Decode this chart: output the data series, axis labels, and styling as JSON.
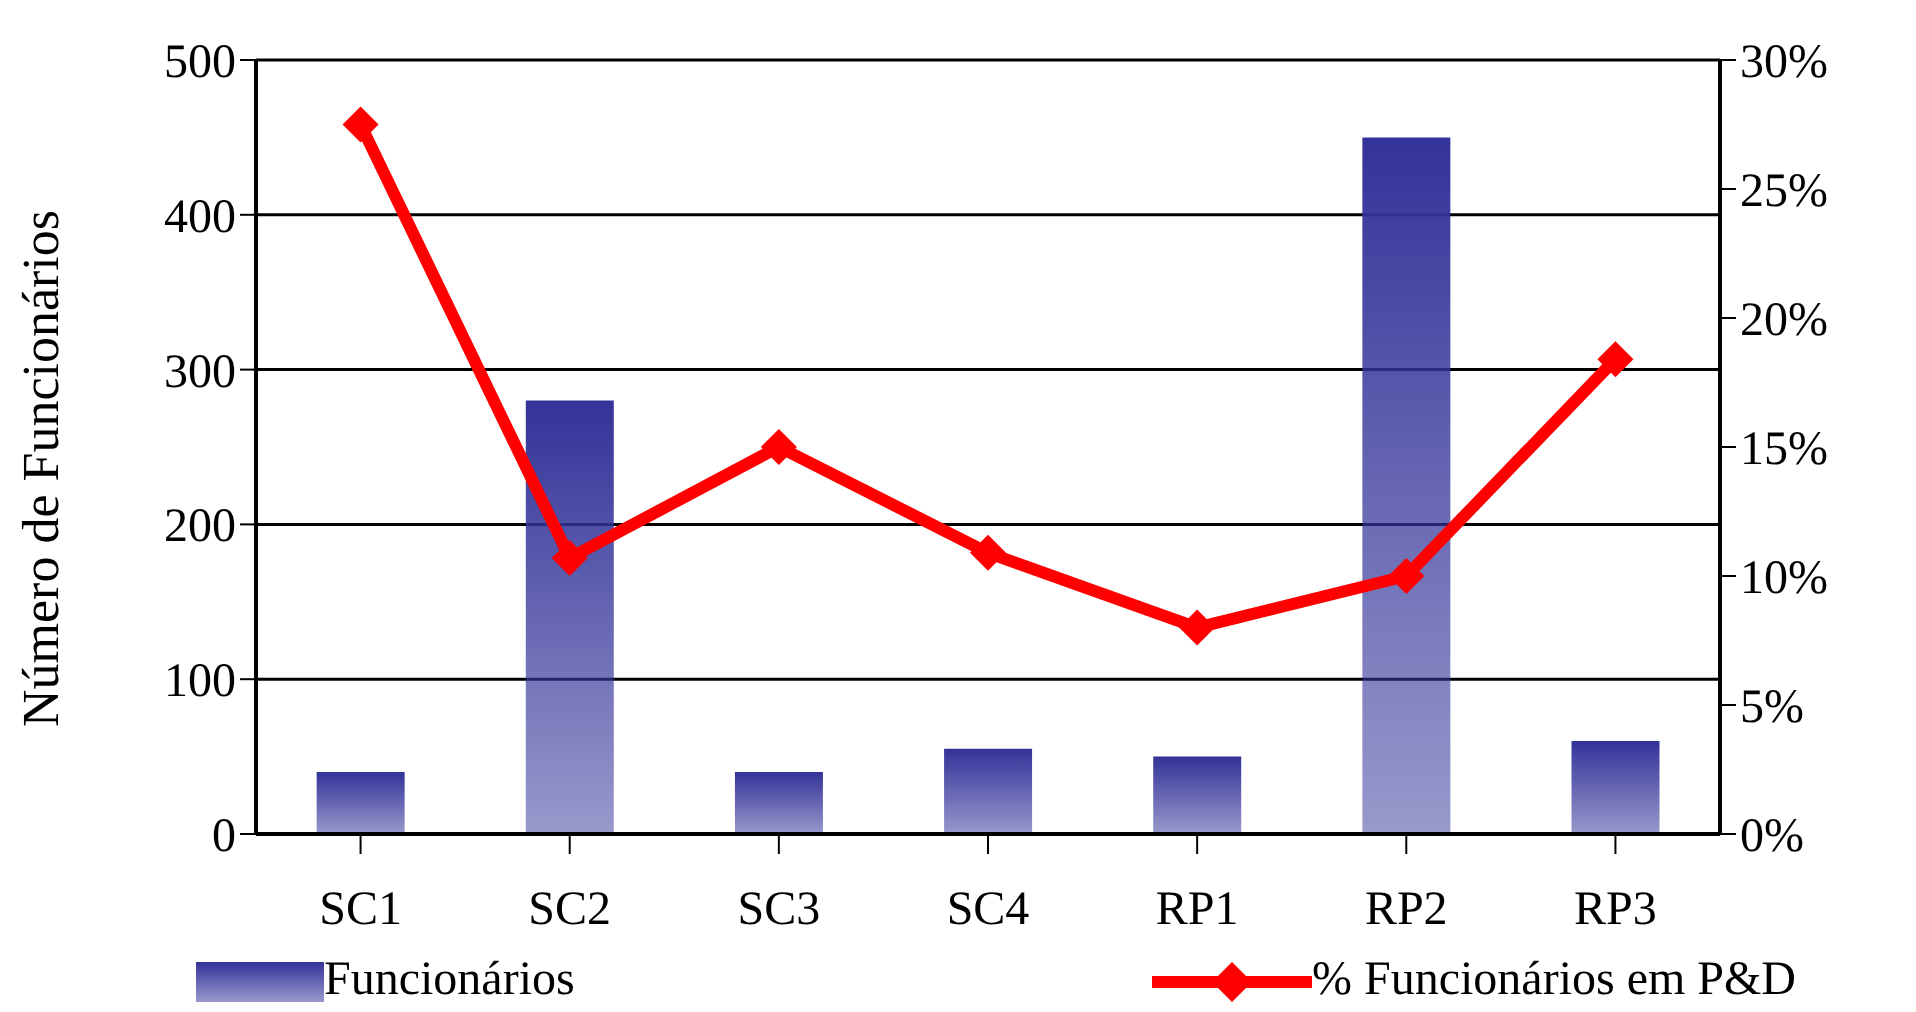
{
  "chart_data": {
    "type": "bar",
    "ylabel": "Número de Funcionários",
    "categories": [
      "SC1",
      "SC2",
      "SC3",
      "SC4",
      "RP1",
      "RP2",
      "RP3"
    ],
    "series": [
      {
        "name": "Funcionários",
        "color": "#333399",
        "values": [
          40,
          280,
          40,
          55,
          50,
          450,
          60
        ]
      },
      {
        "name": "% Funcionários em P&D",
        "type": "line",
        "axis": "y2",
        "color": "#ff0000",
        "values": [
          27.5,
          10.7,
          15.0,
          10.9,
          8.0,
          10.0,
          18.4
        ]
      }
    ],
    "ylim": [
      0,
      500
    ],
    "yticks": [
      0,
      100,
      200,
      300,
      400,
      500
    ],
    "y2lim": [
      0,
      30
    ],
    "y2ticks": [
      {
        "value": 0,
        "label": "0%"
      },
      {
        "value": 5,
        "label": "5%"
      },
      {
        "value": 10,
        "label": "10%"
      },
      {
        "value": 15,
        "label": "15%"
      },
      {
        "value": 20,
        "label": "20%"
      },
      {
        "value": 25,
        "label": "25%"
      },
      {
        "value": 30,
        "label": "30%"
      }
    ],
    "grid": "y",
    "legend": "bottom",
    "marker": "diamond",
    "line_style": "solid"
  }
}
